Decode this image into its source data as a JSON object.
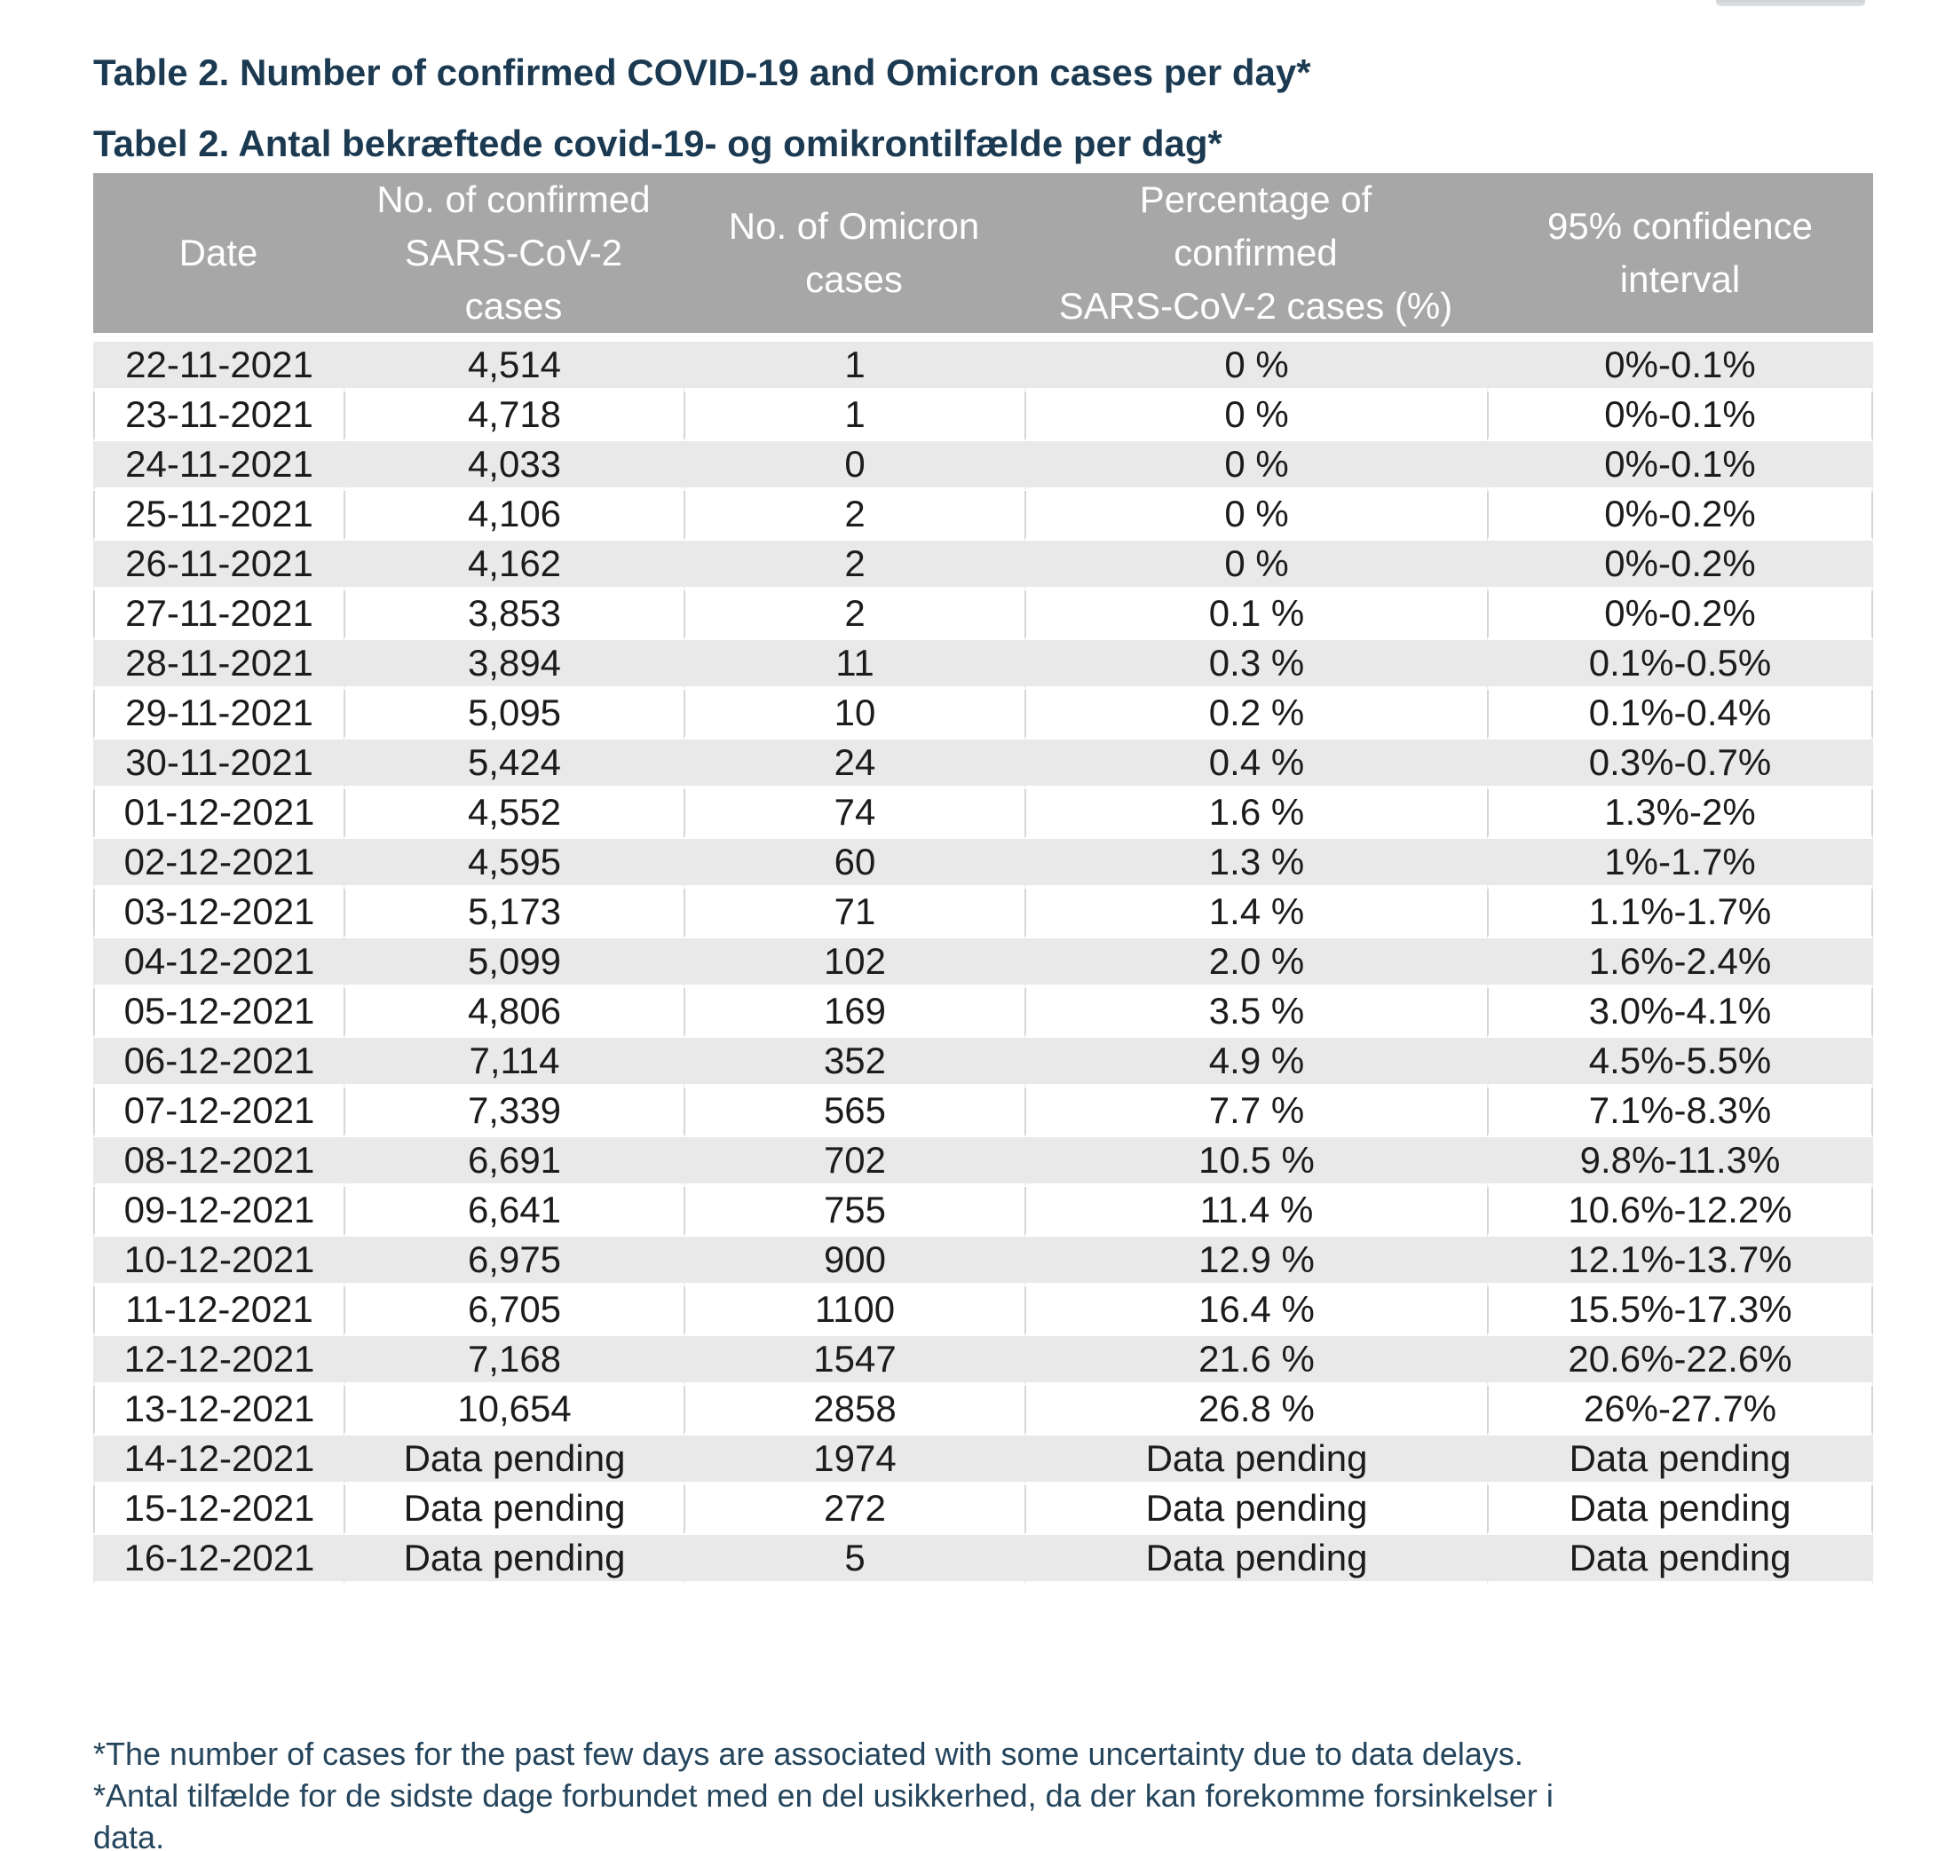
{
  "page": {
    "title_en": "Table 2. Number of confirmed COVID-19 and Omicron cases per day*",
    "title_da": "Tabel 2. Antal bekræftede covid-19- og omikrontilfælde per dag*",
    "footnote_en": "*The number of cases for the past few days are associated with some uncertainty due to data delays.",
    "footnote_da": "*Antal tilfælde for de sidste dage forbundet med en del usikkerhed, da der kan forekomme forsinkelser i data."
  },
  "colors": {
    "header_bg": "#a7a7a7",
    "row_stripe_bg": "#e9e9e9",
    "cell_border": "#d6d6d6",
    "title_text": "#1b3a52",
    "footnote_text": "#24455c",
    "body_text": "#1c1c1c"
  },
  "table": {
    "columns": [
      "Date",
      "No. of confirmed\nSARS-CoV-2\ncases",
      "No. of Omicron\ncases",
      "Percentage of\nconfirmed\nSARS-CoV-2 cases (%)",
      "95% confidence\ninterval"
    ],
    "rows": [
      [
        "22-11-2021",
        "4,514",
        "1",
        "0 %",
        "0%-0.1%"
      ],
      [
        "23-11-2021",
        "4,718",
        "1",
        "0 %",
        "0%-0.1%"
      ],
      [
        "24-11-2021",
        "4,033",
        "0",
        "0 %",
        "0%-0.1%"
      ],
      [
        "25-11-2021",
        "4,106",
        "2",
        "0 %",
        "0%-0.2%"
      ],
      [
        "26-11-2021",
        "4,162",
        "2",
        "0 %",
        "0%-0.2%"
      ],
      [
        "27-11-2021",
        "3,853",
        "2",
        "0.1 %",
        "0%-0.2%"
      ],
      [
        "28-11-2021",
        "3,894",
        "11",
        "0.3 %",
        "0.1%-0.5%"
      ],
      [
        "29-11-2021",
        "5,095",
        "10",
        "0.2 %",
        "0.1%-0.4%"
      ],
      [
        "30-11-2021",
        "5,424",
        "24",
        "0.4 %",
        "0.3%-0.7%"
      ],
      [
        "01-12-2021",
        "4,552",
        "74",
        "1.6 %",
        "1.3%-2%"
      ],
      [
        "02-12-2021",
        "4,595",
        "60",
        "1.3 %",
        "1%-1.7%"
      ],
      [
        "03-12-2021",
        "5,173",
        "71",
        "1.4 %",
        "1.1%-1.7%"
      ],
      [
        "04-12-2021",
        "5,099",
        "102",
        "2.0 %",
        "1.6%-2.4%"
      ],
      [
        "05-12-2021",
        "4,806",
        "169",
        "3.5 %",
        "3.0%-4.1%"
      ],
      [
        "06-12-2021",
        "7,114",
        "352",
        "4.9 %",
        "4.5%-5.5%"
      ],
      [
        "07-12-2021",
        "7,339",
        "565",
        "7.7 %",
        "7.1%-8.3%"
      ],
      [
        "08-12-2021",
        "6,691",
        "702",
        "10.5 %",
        "9.8%-11.3%"
      ],
      [
        "09-12-2021",
        "6,641",
        "755",
        "11.4 %",
        "10.6%-12.2%"
      ],
      [
        "10-12-2021",
        "6,975",
        "900",
        "12.9 %",
        "12.1%-13.7%"
      ],
      [
        "11-12-2021",
        "6,705",
        "1100",
        "16.4 %",
        "15.5%-17.3%"
      ],
      [
        "12-12-2021",
        "7,168",
        "1547",
        "21.6 %",
        "20.6%-22.6%"
      ],
      [
        "13-12-2021",
        "10,654",
        "2858",
        "26.8 %",
        "26%-27.7%"
      ],
      [
        "14-12-2021",
        "Data pending",
        "1974",
        "Data pending",
        "Data pending"
      ],
      [
        "15-12-2021",
        "Data pending",
        "272",
        "Data pending",
        "Data pending"
      ],
      [
        "16-12-2021",
        "Data pending",
        "5",
        "Data pending",
        "Data pending"
      ]
    ]
  }
}
